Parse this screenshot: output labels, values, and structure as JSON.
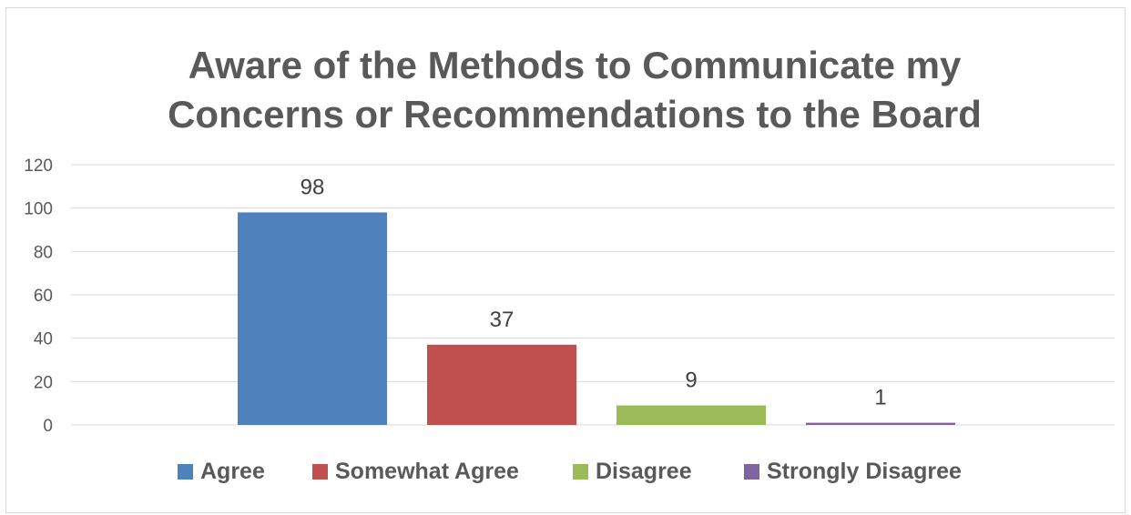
{
  "chart_data": {
    "type": "bar",
    "title_lines": [
      "Aware of the Methods to Communicate my",
      "Concerns or Recommendations to the Board"
    ],
    "title": "Aware of the Methods to Communicate my Concerns or Recommendations to the Board",
    "categories": [
      "Agree",
      "Somewhat Agree",
      "Disagree",
      "Strongly Disagree"
    ],
    "values": [
      98,
      37,
      9,
      1
    ],
    "colors": [
      "#4f81bd",
      "#c0504d",
      "#9bbb59",
      "#8064a2"
    ],
    "ylim": [
      0,
      120
    ],
    "yticks": [
      0,
      20,
      40,
      60,
      80,
      100,
      120
    ],
    "xlabel": "",
    "ylabel": "",
    "grid": true,
    "legend_position": "bottom",
    "data_labels": true
  }
}
